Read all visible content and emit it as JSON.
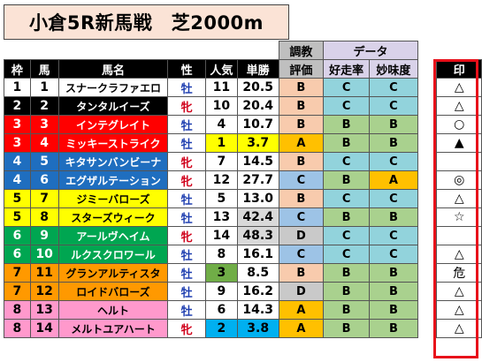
{
  "title": "小倉5R新馬戦　芝2000m",
  "headers": {
    "waku": "枠",
    "uma": "馬",
    "name": "馬名",
    "sex": "性",
    "pop": "人気",
    "odds": "単勝",
    "chokyo1": "調教",
    "chokyo2": "評価",
    "data": "データ",
    "sosoritsu": "好走率",
    "myomido": "妙味度",
    "mark": "印"
  },
  "rows": [
    {
      "waku": "1",
      "uma": "1",
      "name": "スナークラファエロ",
      "sex": "牡",
      "pop": "11",
      "odds": "20.5",
      "eval": "B",
      "rate": "C",
      "myomi": "C",
      "mark": "△"
    },
    {
      "waku": "2",
      "uma": "2",
      "name": "タンタルイーズ",
      "sex": "牝",
      "pop": "10",
      "odds": "20.4",
      "eval": "B",
      "rate": "C",
      "myomi": "C",
      "mark": "△"
    },
    {
      "waku": "3",
      "uma": "3",
      "name": "インテグレイト",
      "sex": "牡",
      "pop": "4",
      "odds": "10.7",
      "eval": "B",
      "rate": "B",
      "myomi": "B",
      "mark": "○"
    },
    {
      "waku": "3",
      "uma": "4",
      "name": "ミッキーストライク",
      "sex": "牡",
      "pop": "1",
      "odds": "3.7",
      "eval": "A",
      "rate": "B",
      "myomi": "B",
      "mark": "▲"
    },
    {
      "waku": "4",
      "uma": "5",
      "name": "キタサンバンビーナ",
      "sex": "牝",
      "pop": "7",
      "odds": "14.5",
      "eval": "B",
      "rate": "C",
      "myomi": "C",
      "mark": ""
    },
    {
      "waku": "4",
      "uma": "6",
      "name": "エグザルテーション",
      "sex": "牝",
      "pop": "12",
      "odds": "27.7",
      "eval": "C",
      "rate": "B",
      "myomi": "A",
      "mark": "◎"
    },
    {
      "waku": "5",
      "uma": "7",
      "name": "ジミーバローズ",
      "sex": "牡",
      "pop": "5",
      "odds": "13.0",
      "eval": "B",
      "rate": "C",
      "myomi": "C",
      "mark": "△"
    },
    {
      "waku": "5",
      "uma": "8",
      "name": "スターズウィーク",
      "sex": "牡",
      "pop": "13",
      "odds": "42.4",
      "eval": "C",
      "rate": "B",
      "myomi": "B",
      "mark": "☆"
    },
    {
      "waku": "6",
      "uma": "9",
      "name": "アールヴヘイム",
      "sex": "牝",
      "pop": "14",
      "odds": "48.3",
      "eval": "D",
      "rate": "C",
      "myomi": "C",
      "mark": ""
    },
    {
      "waku": "6",
      "uma": "10",
      "name": "ルクスクロワール",
      "sex": "牡",
      "pop": "8",
      "odds": "16.1",
      "eval": "C",
      "rate": "C",
      "myomi": "C",
      "mark": "△"
    },
    {
      "waku": "7",
      "uma": "11",
      "name": "グランアルティスタ",
      "sex": "牡",
      "pop": "3",
      "odds": "8.5",
      "eval": "B",
      "rate": "B",
      "myomi": "B",
      "mark": "危"
    },
    {
      "waku": "7",
      "uma": "12",
      "name": "ロイドバローズ",
      "sex": "牡",
      "pop": "9",
      "odds": "16.2",
      "eval": "D",
      "rate": "B",
      "myomi": "B",
      "mark": "△"
    },
    {
      "waku": "8",
      "uma": "13",
      "name": "ヘルト",
      "sex": "牡",
      "pop": "6",
      "odds": "14.3",
      "eval": "A",
      "rate": "B",
      "myomi": "B",
      "mark": "△"
    },
    {
      "waku": "8",
      "uma": "14",
      "name": "メルトユアハート",
      "sex": "牝",
      "pop": "2",
      "odds": "3.8",
      "eval": "A",
      "rate": "B",
      "myomi": "B",
      "mark": "△"
    }
  ],
  "colors": {
    "waku1": "#ffffff",
    "waku2": "#000000",
    "waku3": "#ff0000",
    "waku4": "#1f6ebf",
    "waku5": "#ffff00",
    "waku6": "#00a651",
    "waku7": "#ff9900",
    "waku8": "#ff99cc",
    "frame": "#e8101a",
    "title_bg": "#fbe3d6"
  }
}
